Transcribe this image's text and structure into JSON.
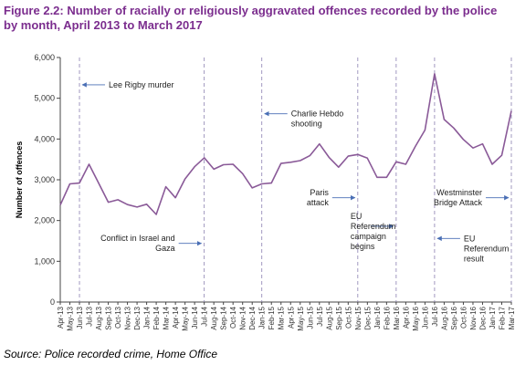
{
  "chart_data": {
    "type": "line",
    "title": "Figure 2.2: Number of racially or religiously aggravated offences recorded by the police by month, April 2013 to March 2017",
    "ylabel": "Number of offences",
    "xlabel": "",
    "ylim": [
      0,
      6000
    ],
    "yticks": [
      "0",
      "1,000",
      "2,000",
      "3,000",
      "4,000",
      "5,000",
      "6,000"
    ],
    "grid": false,
    "categories": [
      "Apr-13",
      "May-13",
      "Jun-13",
      "Jul-13",
      "Aug-13",
      "Sep-13",
      "Oct-13",
      "Nov-13",
      "Dec-13",
      "Jan-14",
      "Feb-14",
      "Mar-14",
      "Apr-14",
      "May-14",
      "Jun-14",
      "Jul-14",
      "Aug-14",
      "Sep-14",
      "Oct-14",
      "Nov-14",
      "Dec-14",
      "Jan-15",
      "Feb-15",
      "Mar-15",
      "Apr-15",
      "May-15",
      "Jun-15",
      "Jul-15",
      "Aug-15",
      "Sep-15",
      "Oct-15",
      "Nov-15",
      "Dec-15",
      "Jan-16",
      "Feb-16",
      "Mar-16",
      "Apr-16",
      "May-16",
      "Jun-16",
      "Jul-16",
      "Aug-16",
      "Sep-16",
      "Oct-16",
      "Nov-16",
      "Dec-16",
      "Jan-17",
      "Feb-17",
      "Mar-17"
    ],
    "x_tick_labels": [
      "Apr-13",
      "May-13",
      "Jun-13",
      "Jul-13",
      "Aug-13",
      "Sep-13",
      "Oct-13",
      "Nov-13",
      "Dec-13",
      "Jan-14",
      "Feb-14",
      "Mar-14",
      "Apr-14",
      "May-14",
      "Jun-14",
      "Jul-14",
      "Aug-14",
      "Sep-14",
      "Oct-14",
      "Nov-14",
      "Dec-14",
      "Jan-15",
      "Feb-15",
      "Mar-15",
      "Apr-15",
      "May-15",
      "Jun-15",
      "Jul-15",
      "Aug-15",
      "Sep-15",
      "Oct-15",
      "Nov-15",
      "Dec-15",
      "Jan-16",
      "Feb-16",
      "Mar-16",
      "Apr-16",
      "May-16",
      "Jun-16",
      "Jul-16",
      "Aug-16",
      "Sep-16",
      "Oct-16",
      "Nov-16",
      "Dec-16",
      "Jan-17",
      "Feb-17",
      "Mar-17"
    ],
    "series": [
      {
        "values": [
          2380,
          2900,
          2920,
          3380,
          2920,
          2450,
          2510,
          2390,
          2330,
          2400,
          2150,
          2830,
          2560,
          3020,
          3320,
          3540,
          3260,
          3370,
          3380,
          3150,
          2800,
          2900,
          2920,
          3400,
          3430,
          3470,
          3590,
          3880,
          3550,
          3310,
          3580,
          3620,
          3530,
          3060,
          3060,
          3440,
          3380,
          3820,
          4220,
          5600,
          4480,
          4270,
          3990,
          3780,
          3880,
          3380,
          3600,
          4690
        ],
        "color": "#8a5a98"
      }
    ],
    "annotations": [
      {
        "index": 2,
        "lines": [
          "Lee Rigby murder"
        ],
        "arrow": "left",
        "y": 5330
      },
      {
        "index": 15,
        "lines": [
          "Conflict in Israel and",
          "Gaza"
        ],
        "arrow": "right",
        "y": 1440
      },
      {
        "index": 21,
        "lines": [
          "Charlie Hebdo",
          "shooting"
        ],
        "arrow": "left",
        "y": 4620
      },
      {
        "index": 31,
        "lines": [
          "Paris",
          "attack"
        ],
        "arrow": "right",
        "y": 2560
      },
      {
        "index": 35,
        "lines": [
          "EU",
          "Referendum",
          "campaign",
          "begins"
        ],
        "arrow": "right",
        "y": 1860
      },
      {
        "index": 39,
        "lines": [
          "EU",
          "Referendum",
          "result"
        ],
        "arrow": "left",
        "y": 1560
      },
      {
        "index": 47,
        "lines": [
          "Westminster",
          "Bridge Attack"
        ],
        "arrow": "right",
        "y": 2560
      }
    ],
    "source": "Source: Police recorded crime, Home Office"
  }
}
